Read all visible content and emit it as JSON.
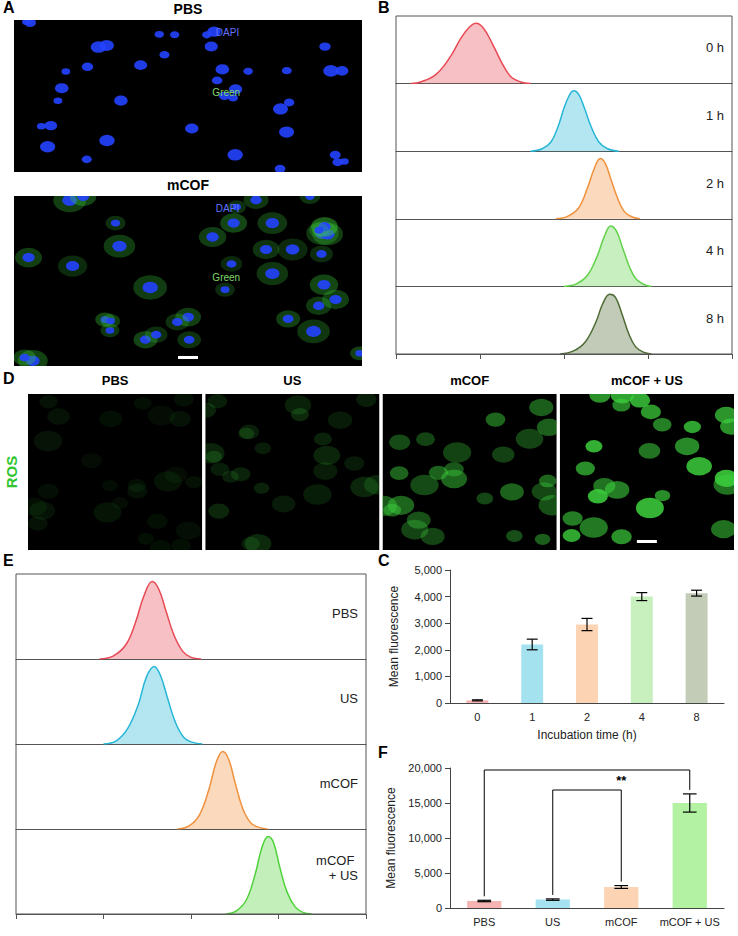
{
  "images": [
    {
      "panel": "A",
      "rows": [
        {
          "title": "PBS",
          "channels": [
            "DAPI",
            "Green"
          ]
        },
        {
          "title": "mCOF",
          "channels": [
            "DAPI",
            "Green"
          ]
        }
      ]
    },
    {
      "panel": "D",
      "row_label": "ROS",
      "titles": [
        "PBS",
        "US",
        "mCOF",
        "mCOF + US"
      ]
    }
  ],
  "chart_data": [
    {
      "panel": "B",
      "type": "area",
      "log": "x",
      "tick_labels": false,
      "grid": false,
      "xlim": [
        10,
        100000
      ],
      "xticks": [
        10,
        100,
        1000,
        10000,
        100000
      ],
      "ylim": [
        0,
        100
      ],
      "series": [
        {
          "name": "0 h",
          "color": "#e84a55",
          "x": [
            15,
            20,
            30,
            45,
            60,
            75,
            90,
            110,
            140,
            180,
            230,
            300,
            400
          ],
          "values": [
            0,
            3,
            15,
            45,
            75,
            92,
            98,
            90,
            65,
            35,
            12,
            3,
            0
          ]
        },
        {
          "name": "1 h",
          "color": "#27b6d6",
          "x": [
            400,
            550,
            700,
            850,
            1000,
            1150,
            1300,
            1500,
            1750,
            2100,
            2600,
            3300,
            4500
          ],
          "values": [
            0,
            4,
            15,
            40,
            70,
            90,
            98,
            92,
            70,
            40,
            15,
            4,
            0
          ]
        },
        {
          "name": "2 h",
          "color": "#f0913e",
          "x": [
            800,
            1100,
            1500,
            1900,
            2300,
            2700,
            3100,
            3600,
            4300,
            5200,
            6500,
            8000
          ],
          "values": [
            0,
            4,
            18,
            50,
            82,
            98,
            90,
            65,
            35,
            12,
            3,
            0
          ]
        },
        {
          "name": "4 h",
          "color": "#62d14a",
          "x": [
            1000,
            1400,
            1900,
            2500,
            3000,
            3600,
            4200,
            5000,
            6000,
            7200,
            9000,
            11000
          ],
          "values": [
            0,
            4,
            18,
            50,
            80,
            98,
            90,
            62,
            32,
            12,
            3,
            0
          ]
        },
        {
          "name": "8 h",
          "color": "#4e6b35",
          "x": [
            900,
            1300,
            1800,
            2400,
            2900,
            3500,
            4100,
            4900,
            5900,
            7100,
            8800,
            11000
          ],
          "values": [
            0,
            5,
            20,
            52,
            82,
            97,
            92,
            65,
            33,
            12,
            3,
            0
          ]
        }
      ]
    },
    {
      "panel": "C",
      "type": "bar",
      "grid": false,
      "xlabel": "Incubation time (h)",
      "ylabel": "Mean fluorescence",
      "categories": [
        "0",
        "1",
        "2",
        "4",
        "8"
      ],
      "values": [
        100,
        2200,
        2950,
        4000,
        4130
      ],
      "errors": [
        20,
        200,
        230,
        150,
        110
      ],
      "colors": [
        "#f6b3b3",
        "#a5e2f0",
        "#fcd4b4",
        "#c8f0bf",
        "#c3ccb6"
      ],
      "ylim": [
        0,
        5000
      ],
      "yticks": [
        0,
        {
          "value": 1000,
          "label": "1,000"
        },
        {
          "value": 2000,
          "label": "2,000"
        },
        {
          "value": 3000,
          "label": "3,000"
        },
        {
          "value": 4000,
          "label": "4,000"
        },
        {
          "value": 5000,
          "label": "5,000"
        }
      ]
    },
    {
      "panel": "E",
      "type": "area",
      "log": "x",
      "tick_labels": false,
      "grid": false,
      "xlim": [
        10,
        100000
      ],
      "xticks": [
        10,
        100,
        1000,
        10000,
        100000
      ],
      "ylim": [
        0,
        100
      ],
      "series": [
        {
          "name": "PBS",
          "color": "#e84a55",
          "x": [
            90,
            130,
            180,
            230,
            290,
            360,
            430,
            520,
            640,
            800,
            1000,
            1300
          ],
          "values": [
            0,
            4,
            18,
            45,
            80,
            98,
            88,
            60,
            30,
            10,
            2,
            0
          ]
        },
        {
          "name": "US",
          "color": "#27b6d6",
          "x": [
            100,
            140,
            190,
            250,
            310,
            380,
            450,
            540,
            660,
            820,
            1050,
            1350
          ],
          "values": [
            0,
            4,
            20,
            50,
            85,
            98,
            86,
            58,
            28,
            9,
            2,
            0
          ]
        },
        {
          "name": "mCOF",
          "color": "#f0913e",
          "x": [
            700,
            950,
            1250,
            1600,
            1950,
            2300,
            2700,
            3200,
            3900,
            4800,
            6000,
            7500
          ],
          "values": [
            0,
            4,
            18,
            50,
            85,
            98,
            88,
            58,
            26,
            8,
            2,
            0
          ]
        },
        {
          "name": "mCOF + US",
          "color": "#4fd13a",
          "x": [
            2500,
            3300,
            4300,
            5400,
            6500,
            7600,
            8800,
            10300,
            12500,
            15500,
            19000,
            24000
          ],
          "values": [
            0,
            4,
            18,
            50,
            85,
            98,
            90,
            60,
            28,
            9,
            2,
            0
          ]
        }
      ]
    },
    {
      "panel": "F",
      "type": "bar",
      "grid": false,
      "ylabel": "Mean fluorescence",
      "categories": [
        "PBS",
        "US",
        "mCOF",
        "mCOF + US"
      ],
      "values": [
        1000,
        1200,
        3000,
        15000
      ],
      "errors": [
        100,
        100,
        200,
        1300
      ],
      "colors": [
        "#f6b3b3",
        "#a5e2f0",
        "#fcd4b4",
        "#b3f2a2"
      ],
      "ylim": [
        0,
        20000
      ],
      "yticks": [
        0,
        {
          "value": 5000,
          "label": "5,000"
        },
        {
          "value": 10000,
          "label": "10,000"
        },
        {
          "value": 15000,
          "label": "15,000"
        },
        {
          "value": 20000,
          "label": "20,000"
        }
      ],
      "annotations": [
        {
          "text": "**",
          "brackets": [
            [
              "PBS",
              "mCOF + US"
            ],
            [
              "US",
              "mCOF"
            ]
          ]
        }
      ]
    }
  ]
}
